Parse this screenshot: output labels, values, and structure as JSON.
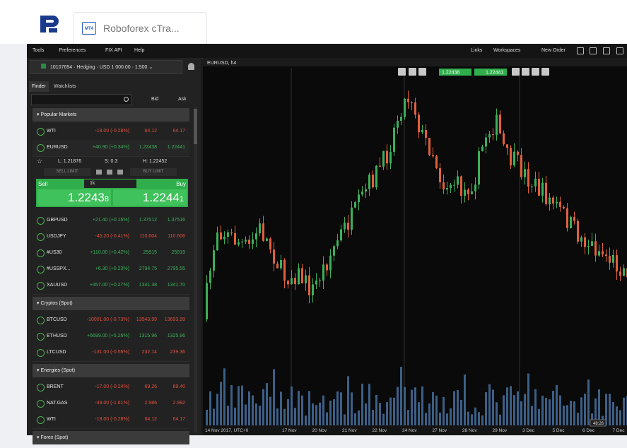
{
  "tab": {
    "icon": "MT4",
    "title": "Roboforex cTra..."
  },
  "menu": [
    "Tools",
    "Preferences",
    "FIX API",
    "Help"
  ],
  "menu_right": [
    "Links",
    "Workspaces",
    "New Order"
  ],
  "account": "10107694 · Hedging · USD 1 000.00 · 1:500 ⌄",
  "panel_tabs": [
    "Finder",
    "Watchlists"
  ],
  "columns": [
    "Bid",
    "Ask"
  ],
  "groups": [
    {
      "name": "Popular Markets",
      "rows": [
        {
          "symbol": "WTI",
          "change": "-18.00 (-0.28%)",
          "bid": "64.12",
          "ask": "64.17"
        },
        {
          "symbol": "EURUSD",
          "change": "+40.90 (+0.34%)",
          "bid": "1.22438",
          "ask": "1.22441"
        },
        {
          "symbol": "GBPUSD",
          "change": "+21.40 (+0.16%)",
          "bid": "1.37512",
          "ask": "1.37516"
        },
        {
          "symbol": "USDJPY",
          "change": "-45.20 (-0.41%)",
          "bid": "110.604",
          "ask": "110.606"
        },
        {
          "symbol": "#US30",
          "change": "+110.00 (+0.42%)",
          "bid": "25915",
          "ask": "25919"
        },
        {
          "symbol": "#USSPX...",
          "change": "+6.30 (+0.23%)",
          "bid": "2794.75",
          "ask": "2795.55"
        },
        {
          "symbol": "XAUUSD",
          "change": "+357.00 (+0.27%)",
          "bid": "1341.38",
          "ask": "1341.70"
        }
      ]
    },
    {
      "name": "Cryptos (Spot)",
      "rows": [
        {
          "symbol": "BTCUSD",
          "change": "-10001.00 (-0.73%)",
          "bid": "13543.99",
          "ask": "13693.99"
        },
        {
          "symbol": "ETHUSD",
          "change": "+6699.00 (+5.26%)",
          "bid": "1315.96",
          "ask": "1325.96"
        },
        {
          "symbol": "LTCUSD",
          "change": "-131.00 (-0.56%)",
          "bid": "232.14",
          "ask": "239.36"
        }
      ]
    },
    {
      "name": "Energies (Spot)",
      "rows": [
        {
          "symbol": "BRENT",
          "change": "-17.00 (-0.24%)",
          "bid": "69.26",
          "ask": "69.40"
        },
        {
          "symbol": "NAT.GAS",
          "change": "-49.00 (-1.61%)",
          "bid": "2.986",
          "ask": "2.992"
        },
        {
          "symbol": "WTI",
          "change": "-18.00 (-0.28%)",
          "bid": "64.12",
          "ask": "64.17"
        }
      ]
    },
    {
      "name": "Forex (Spot)",
      "rows": []
    }
  ],
  "trade_panel": {
    "low": "L: 1.21876",
    "spread": "S: 0.3",
    "high": "H: 1.22452",
    "sell_limit": "SELL LIMIT",
    "buy_limit": "BUY LIMIT",
    "sell": "Sell",
    "buy": "Buy",
    "quantity": "1k",
    "sell_price": "1.2243",
    "sell_pip": "8",
    "buy_price": "1.2244",
    "buy_pip": "1"
  },
  "chart": {
    "title": "EURUSD, h4",
    "toolbar_prices": [
      "1.22438",
      "1.22441"
    ],
    "x_labels": [
      "14 Nov 2017, UTC+0",
      "17 Nov",
      "20 Nov",
      "21 Nov",
      "22 Nov",
      "24 Nov",
      "27 Nov",
      "28 Nov",
      "29 Nov",
      "3 Dec",
      "5 Dec",
      "6 Dec",
      "7 Dec"
    ],
    "countdown": "48:26"
  }
}
